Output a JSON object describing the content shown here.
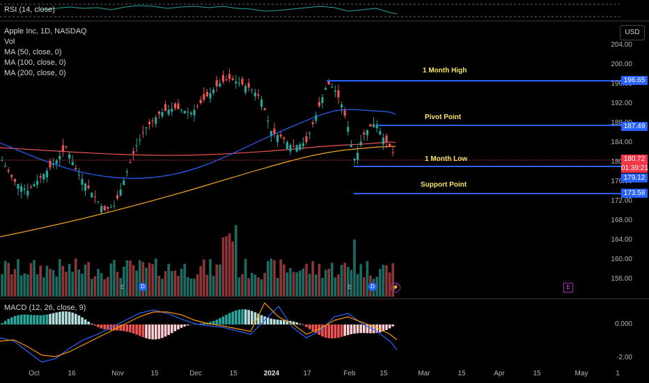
{
  "rsi": {
    "label": "RSI (14, close)"
  },
  "main": {
    "legend": [
      "Apple Inc, 1D, NASDAQ",
      "Vol",
      "MA (50, close, 0)",
      "MA (100, close, 0)",
      "MA (200, close, 0)"
    ],
    "currency_button": "USD",
    "price_axis": [
      "204.00",
      "200.00",
      "196.00",
      "192.00",
      "188.00",
      "184.00",
      "180.00",
      "176.00",
      "172.00",
      "168.00",
      "164.00",
      "160.00",
      "156.00"
    ],
    "levels": [
      {
        "name": "1 Month High",
        "value": "196.65",
        "tag_color": "#2962ff"
      },
      {
        "name": "Pivot Point",
        "value": "187.49",
        "tag_color": "#2962ff"
      },
      {
        "name": "1 Month Low",
        "value": "179.12",
        "tag_color": "#2962ff"
      },
      {
        "name": "Support Point",
        "value": "173.58",
        "tag_color": "#2962ff"
      }
    ],
    "last_price": {
      "value": "180.72",
      "countdown": "01:39:21",
      "color": "#f23645"
    },
    "events": [
      {
        "icon": "earnings-icon",
        "text": "E",
        "color": "#434651"
      },
      {
        "icon": "dividend-icon",
        "text": "D",
        "color": "#2962ff"
      },
      {
        "icon": "earnings-icon",
        "text": "E",
        "color": "#434651"
      },
      {
        "icon": "dividend-icon",
        "text": "D",
        "color": "#2962ff"
      },
      {
        "icon": "split-icon",
        "text": "⚡",
        "color": "#9c27b0"
      },
      {
        "icon": "earnings-icon",
        "text": "E",
        "color": "#9c27b0"
      }
    ]
  },
  "macd": {
    "label": "MACD (12, 26, close, 9)",
    "axis": [
      "0.000",
      "-2.00"
    ]
  },
  "time_axis": [
    {
      "label": "Oct",
      "bold": false
    },
    {
      "label": "16",
      "bold": false
    },
    {
      "label": "Nov",
      "bold": false
    },
    {
      "label": "15",
      "bold": false
    },
    {
      "label": "Dec",
      "bold": false
    },
    {
      "label": "15",
      "bold": false
    },
    {
      "label": "2024",
      "bold": true
    },
    {
      "label": "17",
      "bold": false
    },
    {
      "label": "Feb",
      "bold": false
    },
    {
      "label": "15",
      "bold": false
    },
    {
      "label": "Mar",
      "bold": false
    },
    {
      "label": "15",
      "bold": false
    },
    {
      "label": "Apr",
      "bold": false
    },
    {
      "label": "15",
      "bold": false
    },
    {
      "label": "May",
      "bold": false
    },
    {
      "label": "1",
      "bold": false
    }
  ],
  "colors": {
    "up": "#26a69a",
    "down": "#ef5350",
    "ma50": "#2962ff",
    "ma100": "#ef5350",
    "ma200": "#f5a623",
    "level_line": "#2962ff",
    "annotation": "#f5e663"
  }
}
